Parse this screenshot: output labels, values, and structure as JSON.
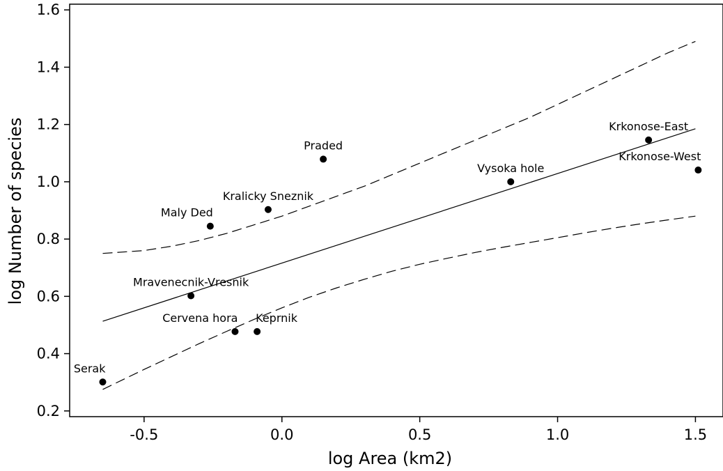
{
  "chart_data": {
    "type": "scatter",
    "xlabel": "log Area (km2)",
    "ylabel": "log Number of species",
    "xlim": [
      -0.77,
      1.6
    ],
    "ylim": [
      0.18,
      1.62
    ],
    "x_ticks": [
      -0.5,
      0.0,
      0.5,
      1.0,
      1.5
    ],
    "x_tick_labels": [
      "-0.5",
      "0.0",
      "0.5",
      "1.0",
      "1.5"
    ],
    "y_ticks": [
      0.2,
      0.4,
      0.6,
      0.8,
      1.0,
      1.2,
      1.4,
      1.6
    ],
    "y_tick_labels": [
      "0.2",
      "0.4",
      "0.6",
      "0.8",
      "1.0",
      "1.2",
      "1.4",
      "1.6"
    ],
    "grid": false,
    "legend": "none",
    "points": [
      {
        "label": "Serak",
        "x": -0.65,
        "y": 0.301,
        "anchor": "end"
      },
      {
        "label": "Mravenecnik-Vresnik",
        "x": -0.33,
        "y": 0.602,
        "anchor": "middle"
      },
      {
        "label": "Cervena hora",
        "x": -0.17,
        "y": 0.477,
        "anchor": "end"
      },
      {
        "label": "Keprnik",
        "x": -0.09,
        "y": 0.477,
        "anchor": "start"
      },
      {
        "label": "Maly Ded",
        "x": -0.26,
        "y": 0.845,
        "anchor": "end"
      },
      {
        "label": "Kralicky Sneznik",
        "x": -0.05,
        "y": 0.903,
        "anchor": "middle"
      },
      {
        "label": "Praded",
        "x": 0.15,
        "y": 1.079,
        "anchor": "middle"
      },
      {
        "label": "Vysoka hole",
        "x": 0.83,
        "y": 1.0,
        "anchor": "middle"
      },
      {
        "label": "Krkonose-East",
        "x": 1.33,
        "y": 1.146,
        "anchor": "middle"
      },
      {
        "label": "Krkonose-West",
        "x": 1.51,
        "y": 1.041,
        "anchor": "end"
      }
    ],
    "fit_line": {
      "x": [
        -0.65,
        1.5
      ],
      "y": [
        0.513,
        1.185
      ]
    },
    "ci_upper": {
      "x": [
        -0.65,
        -0.5,
        -0.4,
        -0.3,
        -0.2,
        -0.1,
        0.0,
        0.1,
        0.2,
        0.3,
        0.4,
        0.5,
        0.6,
        0.7,
        0.8,
        0.9,
        1.0,
        1.1,
        1.2,
        1.3,
        1.4,
        1.5
      ],
      "y": [
        0.75,
        0.76,
        0.775,
        0.795,
        0.82,
        0.85,
        0.88,
        0.915,
        0.95,
        0.985,
        1.025,
        1.065,
        1.105,
        1.145,
        1.185,
        1.225,
        1.27,
        1.315,
        1.36,
        1.405,
        1.45,
        1.49
      ]
    },
    "ci_lower": {
      "x": [
        -0.65,
        -0.5,
        -0.4,
        -0.3,
        -0.2,
        -0.1,
        0.0,
        0.1,
        0.2,
        0.3,
        0.4,
        0.5,
        0.6,
        0.7,
        0.8,
        0.9,
        1.0,
        1.1,
        1.2,
        1.3,
        1.4,
        1.5
      ],
      "y": [
        0.275,
        0.345,
        0.39,
        0.435,
        0.478,
        0.52,
        0.56,
        0.597,
        0.63,
        0.66,
        0.688,
        0.712,
        0.733,
        0.753,
        0.771,
        0.788,
        0.805,
        0.822,
        0.838,
        0.853,
        0.867,
        0.88
      ]
    }
  }
}
